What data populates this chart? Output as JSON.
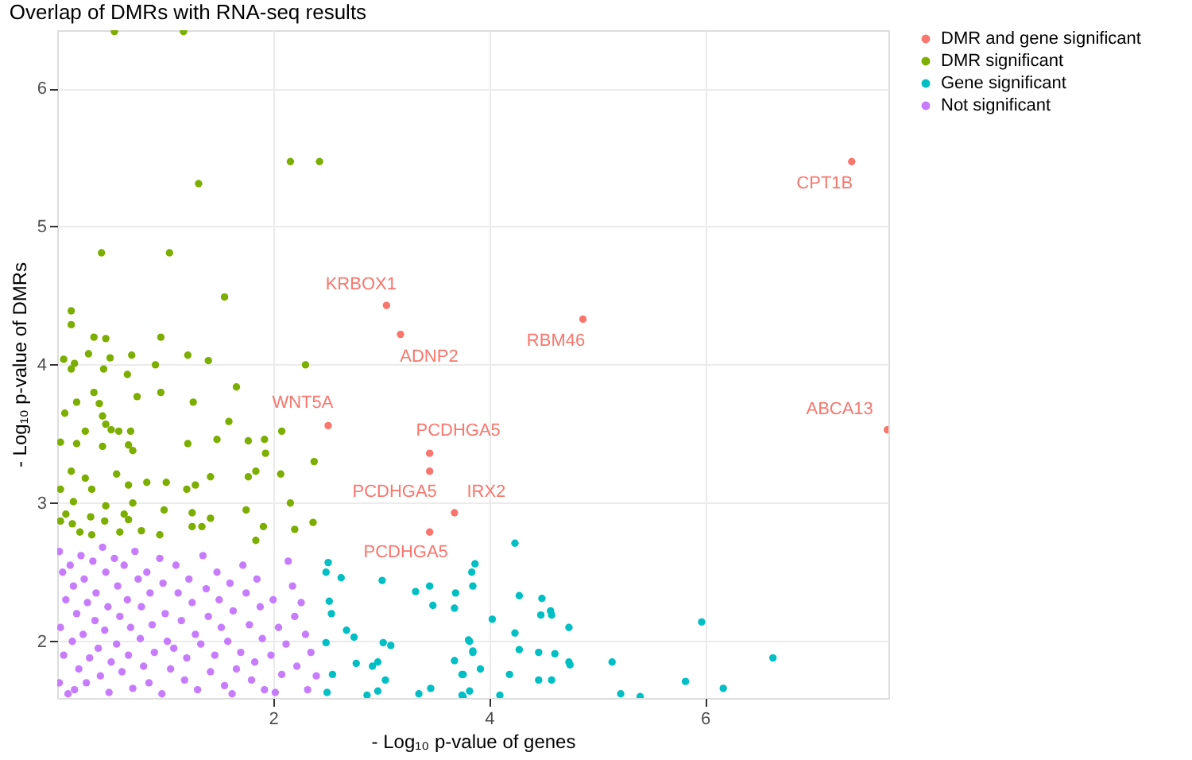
{
  "chart_data": {
    "type": "scatter",
    "title": "Overlap of DMRs with RNA-seq results",
    "xlabel": "- Log₁₀ p-value of genes",
    "ylabel": "- Log₁₀ p-value of DMRs",
    "xlim": [
      0,
      7.7
    ],
    "ylim": [
      1.59,
      6.42
    ],
    "xticks": [
      2,
      4,
      6
    ],
    "yticks": [
      2,
      3,
      4,
      5,
      6
    ],
    "grid": true,
    "legend": "right",
    "marker": "circle",
    "series": [
      {
        "name": "DMR and gene significant",
        "color": "#f8766d",
        "x": [
          3.05,
          3.18,
          4.87,
          7.36,
          7.69,
          2.51,
          3.45,
          3.45,
          3.45,
          3.68
        ],
        "values": [
          4.43,
          4.22,
          4.33,
          5.47,
          3.53,
          3.56,
          3.36,
          3.23,
          2.79,
          2.93
        ]
      },
      {
        "name": "DMR significant",
        "color": "#7cae00",
        "x": [
          0.53,
          1.17,
          2.16,
          2.43,
          1.31,
          0.41,
          1.04,
          1.55,
          0.13,
          0.13,
          0.34,
          0.45,
          0.96,
          0.29,
          0.69,
          1.21,
          0.06,
          0.16,
          0.49,
          1.4,
          0.91,
          2.3,
          0.13,
          0.43,
          0.65,
          0.34,
          0.74,
          0.96,
          1.26,
          1.66,
          0.18,
          0.07,
          0.39,
          0.42,
          0.45,
          0.5,
          0.26,
          0.57,
          0.68,
          1.59,
          2.08,
          0.03,
          0.18,
          0.42,
          0.66,
          0.7,
          1.21,
          1.48,
          1.77,
          1.92,
          1.93,
          2.38,
          2.07,
          1.84,
          1.77,
          1.42,
          1.28,
          1.2,
          1.01,
          0.83,
          0.66,
          0.55,
          0.26,
          0.13,
          0.03,
          0.32,
          0.15,
          0.45,
          0.7,
          2.16,
          1.75,
          0.99,
          1.25,
          0.08,
          0.31,
          0.62,
          1.42,
          2.37,
          1.91,
          2.2,
          1.84,
          0.14,
          0.21,
          0.44,
          0.66,
          0.78,
          0.58,
          0.95,
          1.25,
          1.34,
          0.32,
          0.03
        ],
        "values": [
          6.41,
          6.41,
          5.47,
          5.47,
          5.31,
          4.81,
          4.81,
          4.49,
          4.39,
          4.29,
          4.2,
          4.19,
          4.2,
          4.08,
          4.07,
          4.07,
          4.04,
          4.01,
          4.05,
          4.03,
          4.0,
          4.0,
          3.97,
          3.97,
          3.93,
          3.8,
          3.77,
          3.8,
          3.73,
          3.84,
          3.73,
          3.65,
          3.72,
          3.63,
          3.57,
          3.53,
          3.52,
          3.52,
          3.52,
          3.59,
          3.52,
          3.44,
          3.43,
          3.41,
          3.42,
          3.38,
          3.43,
          3.46,
          3.45,
          3.46,
          3.36,
          3.3,
          3.21,
          3.23,
          3.19,
          3.19,
          3.13,
          3.1,
          3.15,
          3.15,
          3.13,
          3.21,
          3.18,
          3.23,
          3.1,
          3.1,
          3.01,
          2.98,
          3.0,
          3.0,
          2.95,
          2.95,
          2.93,
          2.92,
          2.9,
          2.92,
          2.89,
          2.86,
          2.83,
          2.81,
          2.73,
          2.85,
          2.79,
          2.87,
          2.88,
          2.8,
          2.79,
          2.77,
          2.83,
          2.83,
          2.77,
          2.87
        ]
      },
      {
        "name": "Gene significant",
        "color": "#00bfc4",
        "x": [
          2.51,
          2.49,
          2.63,
          3.01,
          3.32,
          3.45,
          3.48,
          3.69,
          3.68,
          2.52,
          2.54,
          2.68,
          2.75,
          2.49,
          3.02,
          3.09,
          3.81,
          3.85,
          2.77,
          2.92,
          2.97,
          2.55,
          3.04,
          2.97,
          3.46,
          3.68,
          3.75,
          2.5,
          2.87,
          3.35,
          3.75,
          4.24,
          3.87,
          3.84,
          3.85,
          4.28,
          4.49,
          4.48,
          4.57,
          4.58,
          4.74,
          4.03,
          5.97,
          4.24,
          3.82,
          3.85,
          4.28,
          4.46,
          4.61,
          4.74,
          4.75,
          5.14,
          6.63,
          3.92,
          4.19,
          4.46,
          4.58,
          5.82,
          6.17,
          5.22,
          5.4,
          4.1,
          3.82,
          3.76,
          3.76
        ],
        "values": [
          2.57,
          2.5,
          2.46,
          2.44,
          2.36,
          2.4,
          2.26,
          2.35,
          2.24,
          2.29,
          2.2,
          2.08,
          2.03,
          1.99,
          1.99,
          1.97,
          2.01,
          1.93,
          1.84,
          1.82,
          1.85,
          1.76,
          1.72,
          1.64,
          1.66,
          1.86,
          1.76,
          1.63,
          1.61,
          1.62,
          1.61,
          2.71,
          2.56,
          2.5,
          2.4,
          2.33,
          2.31,
          2.19,
          2.22,
          2.19,
          2.1,
          2.16,
          2.14,
          2.06,
          2.0,
          1.92,
          1.94,
          1.92,
          1.91,
          1.85,
          1.83,
          1.85,
          1.88,
          1.8,
          1.76,
          1.72,
          1.72,
          1.71,
          1.66,
          1.62,
          1.6,
          1.61,
          1.64,
          1.6,
          1.76
        ]
      },
      {
        "name": "Not significant",
        "color": "#c77cff",
        "x": [
          0.02,
          0.05,
          0.08,
          0.03,
          0.06,
          0.02,
          0.1,
          0.12,
          0.15,
          0.18,
          0.14,
          0.2,
          0.16,
          0.22,
          0.25,
          0.28,
          0.24,
          0.3,
          0.27,
          0.33,
          0.36,
          0.35,
          0.38,
          0.4,
          0.42,
          0.45,
          0.47,
          0.44,
          0.5,
          0.48,
          0.53,
          0.56,
          0.58,
          0.55,
          0.6,
          0.62,
          0.65,
          0.68,
          0.66,
          0.7,
          0.72,
          0.75,
          0.78,
          0.77,
          0.8,
          0.83,
          0.86,
          0.88,
          0.9,
          0.85,
          0.95,
          0.98,
          1.0,
          1.02,
          1.05,
          0.97,
          1.1,
          1.12,
          1.15,
          1.08,
          1.18,
          1.22,
          1.25,
          1.28,
          1.2,
          1.3,
          1.35,
          1.38,
          1.4,
          1.33,
          1.42,
          1.48,
          1.5,
          1.52,
          1.46,
          1.55,
          1.6,
          1.63,
          1.58,
          1.66,
          1.62,
          1.72,
          1.75,
          1.78,
          1.7,
          1.8,
          1.85,
          1.88,
          1.9,
          1.83,
          1.92,
          2.0,
          2.05,
          1.98,
          2.08,
          2.02,
          2.14,
          2.18,
          2.2,
          2.12,
          2.22,
          2.26,
          2.3,
          2.35,
          2.4,
          2.32
        ],
        "values": [
          2.65,
          2.5,
          2.3,
          2.1,
          1.9,
          1.7,
          1.62,
          2.55,
          2.4,
          2.2,
          2.0,
          1.8,
          1.65,
          2.62,
          2.45,
          2.28,
          2.05,
          1.88,
          1.7,
          2.58,
          2.35,
          2.15,
          1.95,
          1.75,
          2.68,
          2.5,
          2.25,
          2.08,
          1.85,
          1.63,
          2.6,
          2.4,
          2.18,
          1.98,
          1.78,
          2.55,
          2.3,
          2.1,
          1.9,
          1.66,
          2.65,
          2.45,
          2.25,
          2.02,
          1.82,
          2.5,
          2.35,
          2.12,
          1.92,
          1.7,
          2.6,
          2.42,
          2.2,
          2.0,
          1.8,
          1.62,
          2.55,
          2.35,
          2.15,
          1.95,
          1.72,
          2.45,
          2.28,
          2.05,
          1.88,
          1.65,
          2.62,
          2.38,
          2.18,
          1.98,
          1.78,
          2.5,
          2.3,
          2.1,
          1.9,
          1.68,
          2.42,
          2.22,
          2.0,
          1.8,
          1.62,
          2.55,
          2.35,
          2.12,
          1.92,
          1.72,
          2.45,
          2.25,
          2.02,
          1.85,
          1.65,
          2.3,
          2.1,
          1.9,
          1.76,
          1.63,
          2.58,
          2.4,
          2.18,
          1.98,
          1.82,
          2.28,
          2.05,
          1.92,
          1.75,
          1.65
        ]
      }
    ],
    "annotations": [
      {
        "text": "KRBOX1",
        "x": 3.05,
        "y": 4.43
      },
      {
        "text": "ADNP2",
        "x": 3.18,
        "y": 4.22
      },
      {
        "text": "RBM46",
        "x": 4.87,
        "y": 4.33
      },
      {
        "text": "CPT1B",
        "x": 7.36,
        "y": 5.47
      },
      {
        "text": "ABCA13",
        "x": 7.69,
        "y": 3.53
      },
      {
        "text": "WNT5A",
        "x": 2.51,
        "y": 3.56
      },
      {
        "text": "PCDHGA5",
        "x": 3.45,
        "y": 3.36
      },
      {
        "text": "PCDHGA5",
        "x": 3.45,
        "y": 3.23
      },
      {
        "text": "PCDHGA5",
        "x": 3.45,
        "y": 2.79
      },
      {
        "text": "IRX2",
        "x": 3.68,
        "y": 2.93
      }
    ]
  }
}
